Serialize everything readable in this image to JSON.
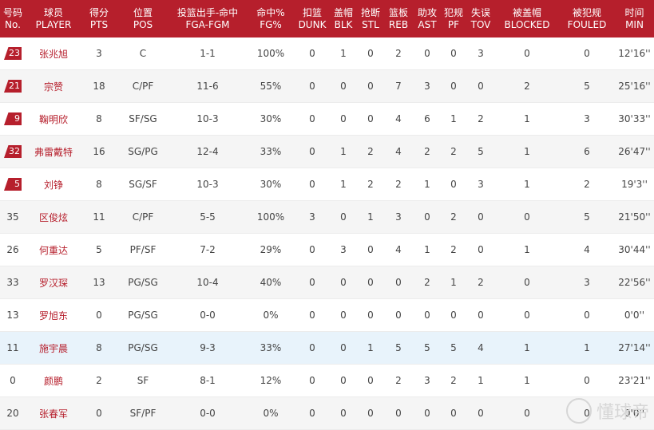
{
  "headers": [
    {
      "cn": "号码",
      "en": "No."
    },
    {
      "cn": "球员",
      "en": "PLAYER"
    },
    {
      "cn": "得分",
      "en": "PTS"
    },
    {
      "cn": "位置",
      "en": "POS"
    },
    {
      "cn": "投篮出手-命中",
      "en": "FGA-FGM"
    },
    {
      "cn": "命中%",
      "en": "FG%"
    },
    {
      "cn": "扣篮",
      "en": "DUNK"
    },
    {
      "cn": "盖帽",
      "en": "BLK"
    },
    {
      "cn": "抢断",
      "en": "STL"
    },
    {
      "cn": "篮板",
      "en": "REB"
    },
    {
      "cn": "助攻",
      "en": "AST"
    },
    {
      "cn": "犯规",
      "en": "PF"
    },
    {
      "cn": "失误",
      "en": "TOV"
    },
    {
      "cn": "被盖帽",
      "en": "BLOCKED"
    },
    {
      "cn": "被犯规",
      "en": "FOULED"
    },
    {
      "cn": "时间",
      "en": "MIN"
    }
  ],
  "rows": [
    {
      "no": "23",
      "starter": true,
      "player": "张兆旭",
      "pts": "3",
      "pos": "C",
      "fga_fgm": "1-1",
      "fg_pct": "100%",
      "dunk": "0",
      "blk": "1",
      "stl": "0",
      "reb": "2",
      "ast": "0",
      "pf": "0",
      "tov": "3",
      "blocked": "0",
      "fouled": "0",
      "min": "12'16''"
    },
    {
      "no": "21",
      "starter": true,
      "player": "宗赞",
      "pts": "18",
      "pos": "C/PF",
      "fga_fgm": "11-6",
      "fg_pct": "55%",
      "dunk": "0",
      "blk": "0",
      "stl": "0",
      "reb": "7",
      "ast": "3",
      "pf": "0",
      "tov": "0",
      "blocked": "2",
      "fouled": "5",
      "min": "25'16''"
    },
    {
      "no": "9",
      "starter": true,
      "player": "鞠明欣",
      "pts": "8",
      "pos": "SF/SG",
      "fga_fgm": "10-3",
      "fg_pct": "30%",
      "dunk": "0",
      "blk": "0",
      "stl": "0",
      "reb": "4",
      "ast": "6",
      "pf": "1",
      "tov": "2",
      "blocked": "1",
      "fouled": "3",
      "min": "30'33''"
    },
    {
      "no": "32",
      "starter": true,
      "player": "弗雷戴特",
      "pts": "16",
      "pos": "SG/PG",
      "fga_fgm": "12-4",
      "fg_pct": "33%",
      "dunk": "0",
      "blk": "1",
      "stl": "2",
      "reb": "4",
      "ast": "2",
      "pf": "2",
      "tov": "5",
      "blocked": "1",
      "fouled": "6",
      "min": "26'47''"
    },
    {
      "no": "5",
      "starter": true,
      "player": "刘铮",
      "pts": "8",
      "pos": "SG/SF",
      "fga_fgm": "10-3",
      "fg_pct": "30%",
      "dunk": "0",
      "blk": "1",
      "stl": "2",
      "reb": "2",
      "ast": "1",
      "pf": "0",
      "tov": "3",
      "blocked": "1",
      "fouled": "2",
      "min": "19'3''"
    },
    {
      "no": "35",
      "starter": false,
      "player": "区俊炫",
      "pts": "11",
      "pos": "C/PF",
      "fga_fgm": "5-5",
      "fg_pct": "100%",
      "dunk": "3",
      "blk": "0",
      "stl": "1",
      "reb": "3",
      "ast": "0",
      "pf": "2",
      "tov": "0",
      "blocked": "0",
      "fouled": "5",
      "min": "21'50''"
    },
    {
      "no": "26",
      "starter": false,
      "player": "何重达",
      "pts": "5",
      "pos": "PF/SF",
      "fga_fgm": "7-2",
      "fg_pct": "29%",
      "dunk": "0",
      "blk": "3",
      "stl": "0",
      "reb": "4",
      "ast": "1",
      "pf": "2",
      "tov": "0",
      "blocked": "1",
      "fouled": "4",
      "min": "30'44''"
    },
    {
      "no": "33",
      "starter": false,
      "player": "罗汉琛",
      "pts": "13",
      "pos": "PG/SG",
      "fga_fgm": "10-4",
      "fg_pct": "40%",
      "dunk": "0",
      "blk": "0",
      "stl": "0",
      "reb": "0",
      "ast": "2",
      "pf": "1",
      "tov": "2",
      "blocked": "0",
      "fouled": "3",
      "min": "22'56''"
    },
    {
      "no": "13",
      "starter": false,
      "player": "罗旭东",
      "pts": "0",
      "pos": "PG/SG",
      "fga_fgm": "0-0",
      "fg_pct": "0%",
      "dunk": "0",
      "blk": "0",
      "stl": "0",
      "reb": "0",
      "ast": "0",
      "pf": "0",
      "tov": "0",
      "blocked": "0",
      "fouled": "0",
      "min": "0'0''"
    },
    {
      "no": "11",
      "starter": false,
      "player": "施宇晨",
      "pts": "8",
      "pos": "PG/SG",
      "fga_fgm": "9-3",
      "fg_pct": "33%",
      "dunk": "0",
      "blk": "0",
      "stl": "1",
      "reb": "5",
      "ast": "5",
      "pf": "5",
      "tov": "4",
      "blocked": "1",
      "fouled": "1",
      "min": "27'14''",
      "highlight": true
    },
    {
      "no": "0",
      "starter": false,
      "player": "颜鹏",
      "pts": "2",
      "pos": "SF",
      "fga_fgm": "8-1",
      "fg_pct": "12%",
      "dunk": "0",
      "blk": "0",
      "stl": "0",
      "reb": "2",
      "ast": "3",
      "pf": "2",
      "tov": "1",
      "blocked": "1",
      "fouled": "0",
      "min": "23'21''"
    },
    {
      "no": "20",
      "starter": false,
      "player": "张春军",
      "pts": "0",
      "pos": "SF/PF",
      "fga_fgm": "0-0",
      "fg_pct": "0%",
      "dunk": "0",
      "blk": "0",
      "stl": "0",
      "reb": "0",
      "ast": "0",
      "pf": "0",
      "tov": "0",
      "blocked": "0",
      "fouled": "0",
      "min": "0'0''"
    }
  ],
  "watermark": "懂球帝",
  "colors": {
    "header_bg": "#b61f2c",
    "starter_tag": "#b61f2c",
    "highlight_row": "#e8f3fb"
  }
}
